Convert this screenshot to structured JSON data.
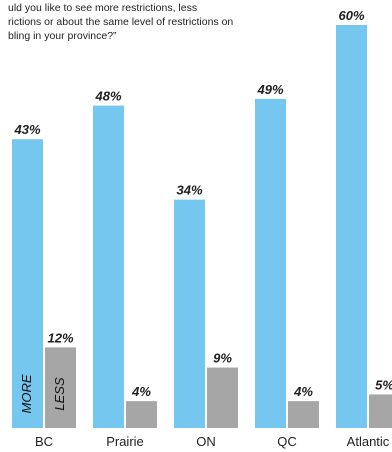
{
  "question": {
    "lines": [
      "uld you like to see more restrictions, less",
      "rictions or about the same level of restrictions on",
      "bling in your province?”"
    ]
  },
  "chart_data": {
    "type": "bar",
    "categories": [
      "BC",
      "Prairie",
      "ON",
      "QC",
      "Atlantic"
    ],
    "series": [
      {
        "name": "MORE",
        "values": [
          43,
          48,
          34,
          49,
          60
        ],
        "labels": [
          "43%",
          "48%",
          "34%",
          "49%",
          "60%"
        ],
        "color": "#76c7f0"
      },
      {
        "name": "LESS",
        "values": [
          12,
          4,
          9,
          4,
          5
        ],
        "labels": [
          "12%",
          "4%",
          "9%",
          "4%",
          "5%"
        ],
        "color": "#a6a6a6"
      }
    ],
    "ylim": [
      0,
      60
    ],
    "grid": false,
    "legend": "inside-first-bars"
  }
}
